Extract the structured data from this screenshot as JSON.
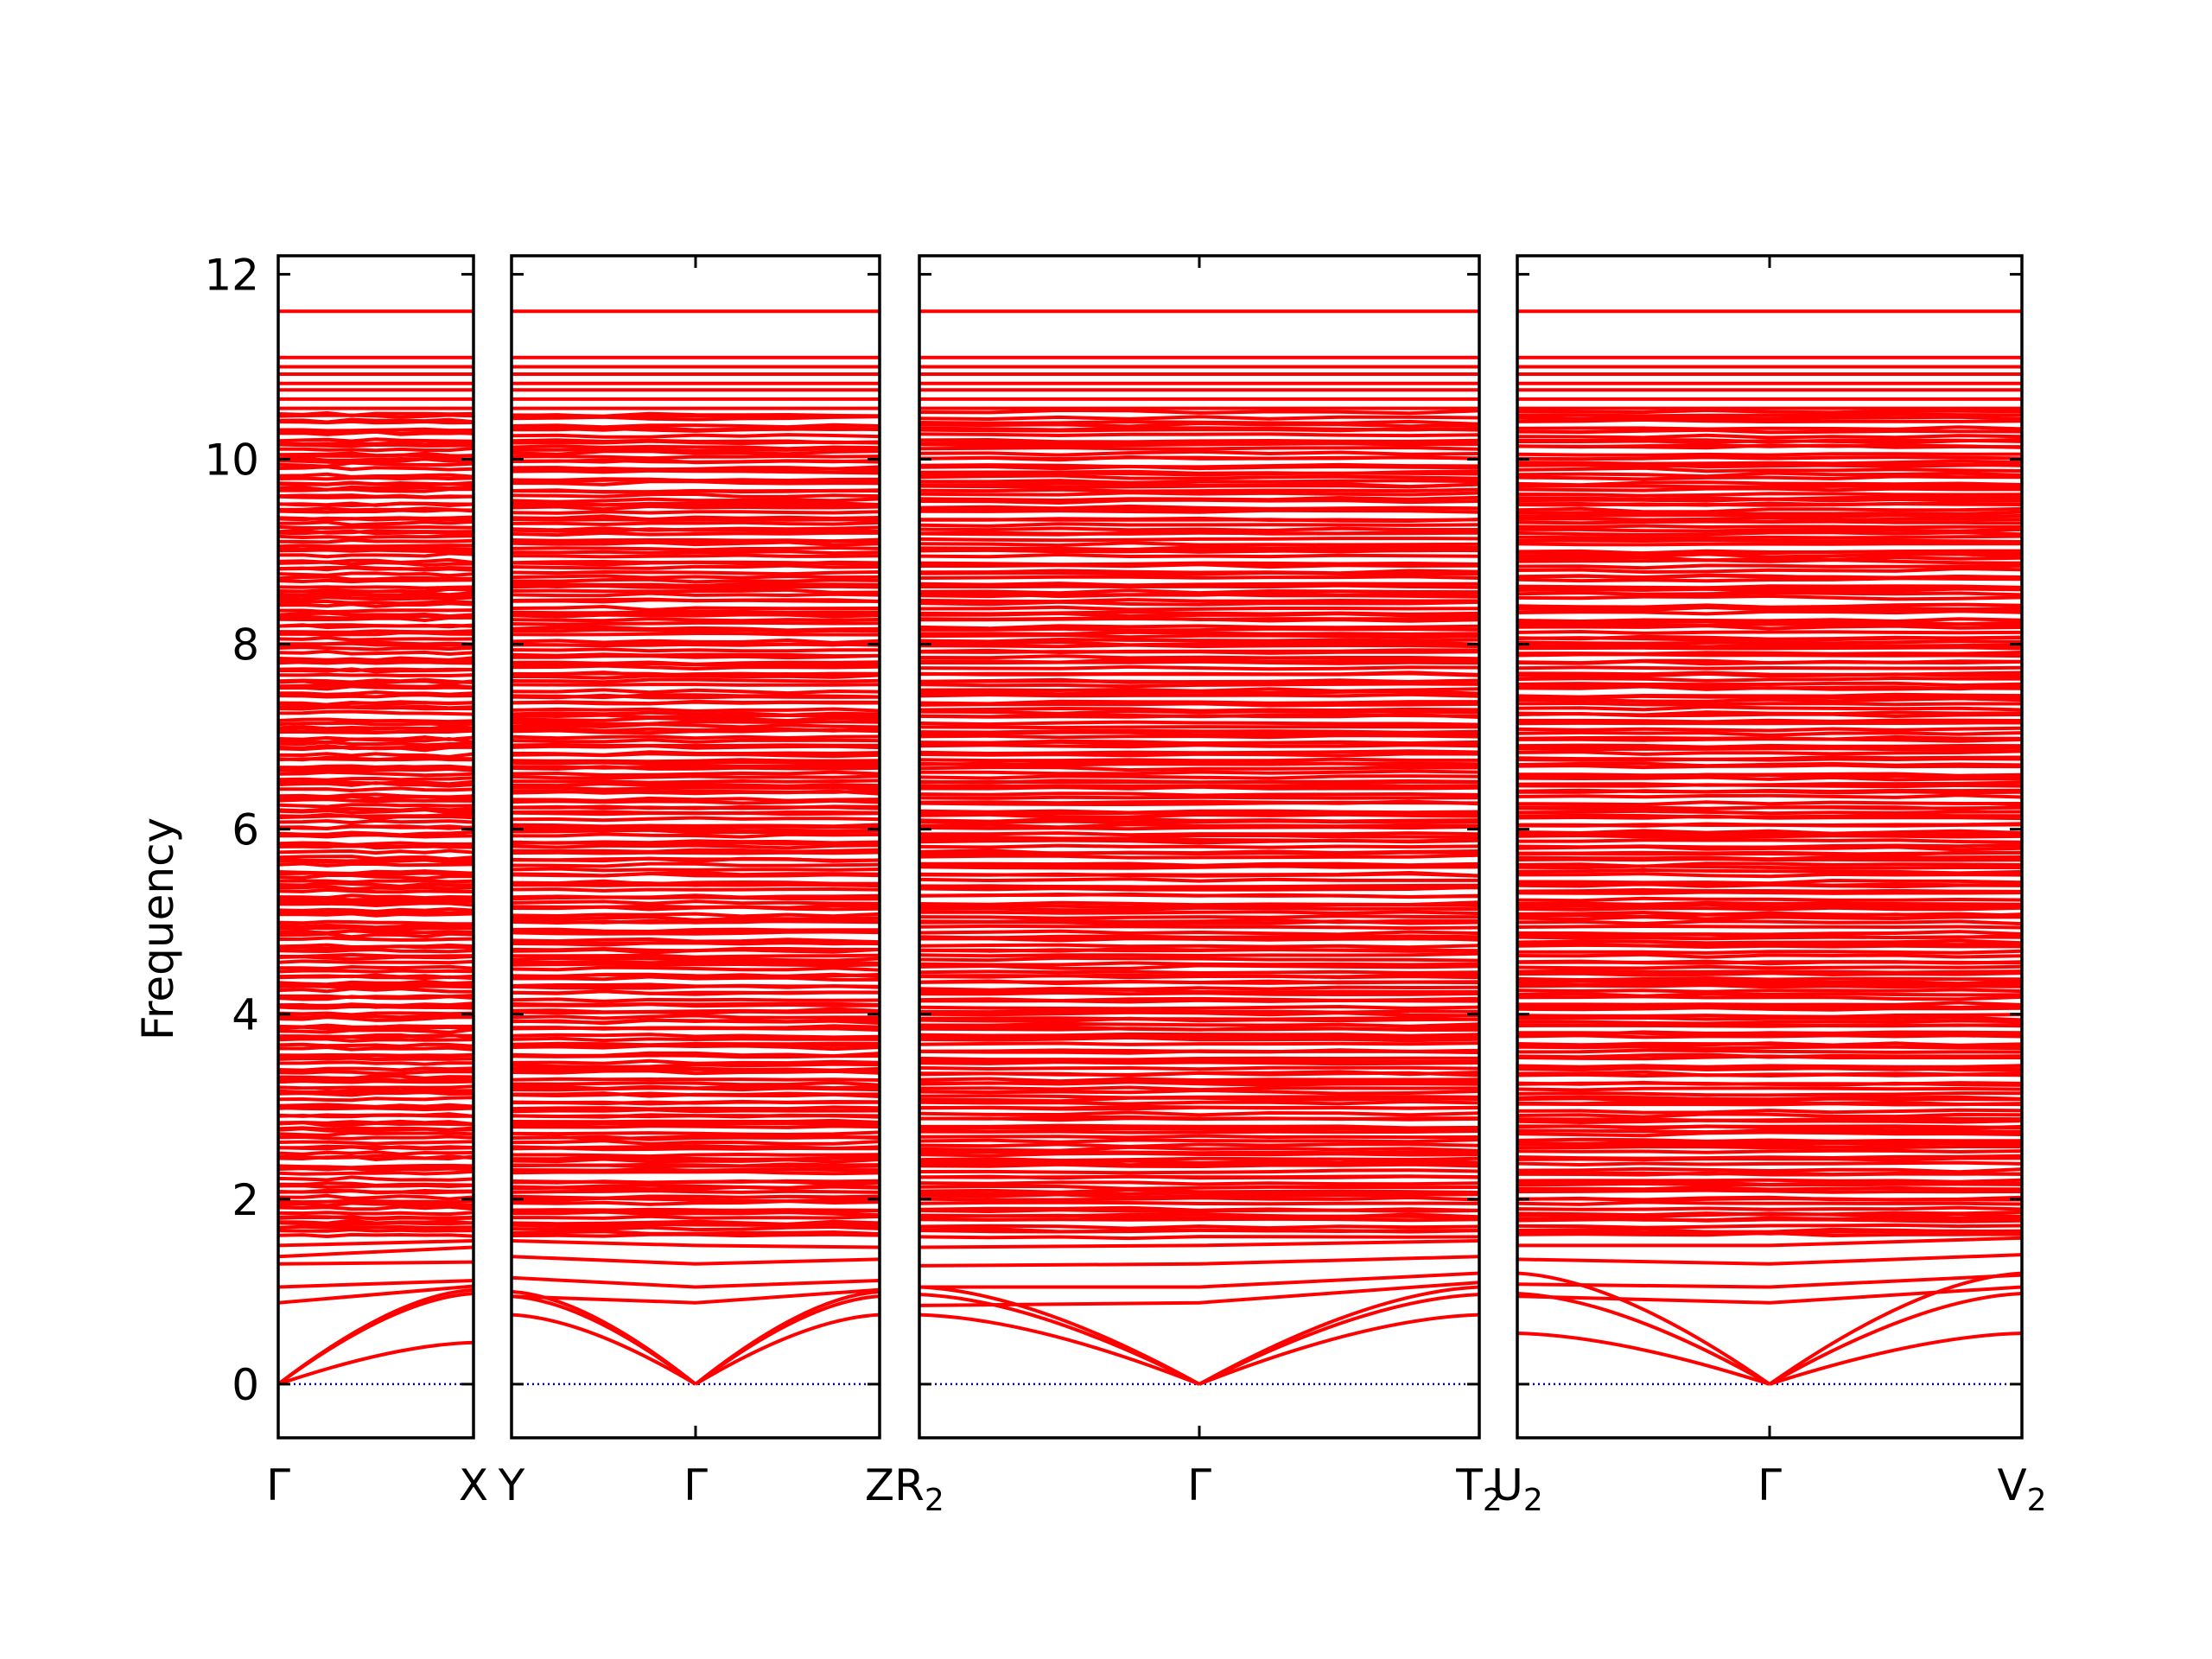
{
  "chart_data": {
    "type": "line",
    "ylabel": "Frequency",
    "ylim": [
      -0.58,
      12.2
    ],
    "yticks": [
      0,
      2,
      4,
      6,
      8,
      10,
      12
    ],
    "colors": {
      "bands": "#ff0000",
      "zero_line": "#0000aa",
      "axes": "#000000"
    },
    "grid": false,
    "legend": "none",
    "panels": [
      {
        "xlabels": [
          {
            "main": "Γ",
            "sub": ""
          },
          {
            "main": "X",
            "sub": ""
          }
        ],
        "acoustic_end": [
          1.02,
          0.98,
          0.45
        ],
        "low_optical": [
          [
            0.88,
            1.06
          ],
          [
            1.05,
            1.12
          ],
          [
            1.3,
            1.32
          ],
          [
            1.38,
            1.48
          ],
          [
            1.5,
            1.55
          ]
        ]
      },
      {
        "xlabels": [
          {
            "main": "Y",
            "sub": ""
          },
          {
            "main": "Γ",
            "sub": ""
          },
          {
            "main": "Z",
            "sub": ""
          }
        ],
        "acoustic_end": [
          1.0,
          0.95,
          0.75
        ],
        "low_optical": [
          [
            0.95,
            0.88,
            1.02
          ],
          [
            1.15,
            1.05,
            1.12
          ],
          [
            1.38,
            1.3,
            1.35
          ],
          [
            1.55,
            1.5,
            1.48
          ]
        ]
      },
      {
        "xlabels": [
          {
            "main": "R",
            "sub": "2"
          },
          {
            "main": "Γ",
            "sub": ""
          },
          {
            "main": "T",
            "sub": "2"
          }
        ],
        "acoustic_end": [
          1.05,
          0.97,
          0.75
        ],
        "low_optical": [
          [
            0.85,
            0.88,
            1.1
          ],
          [
            1.05,
            1.05,
            1.2
          ],
          [
            1.28,
            1.3,
            1.38
          ],
          [
            1.48,
            1.5,
            1.55
          ]
        ]
      },
      {
        "xlabels": [
          {
            "main": "U",
            "sub": "2"
          },
          {
            "main": "Γ",
            "sub": ""
          },
          {
            "main": "V",
            "sub": "2"
          }
        ],
        "acoustic_end": [
          1.2,
          0.98,
          0.55
        ],
        "low_optical": [
          [
            0.95,
            0.88,
            1.05
          ],
          [
            1.08,
            1.05,
            1.18
          ],
          [
            1.35,
            1.3,
            1.4
          ],
          [
            1.5,
            1.5,
            1.58
          ]
        ]
      }
    ],
    "optical_band_range": [
      1.6,
      10.5
    ],
    "top_bands": [
      10.55,
      10.65,
      10.75,
      10.82,
      10.92,
      11.0,
      11.1,
      11.6
    ]
  }
}
